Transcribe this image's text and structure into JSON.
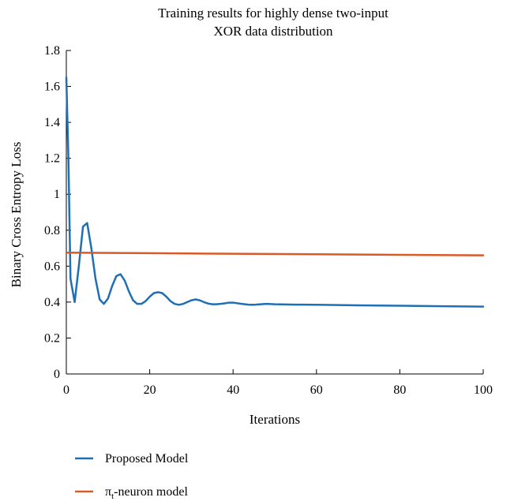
{
  "chart_data": {
    "type": "line",
    "title": [
      "Training results for highly dense two-input",
      "XOR data distribution"
    ],
    "xlabel": "Iterations",
    "ylabel": "Binary Cross Entropy Loss",
    "xlim": [
      0,
      100
    ],
    "ylim": [
      0,
      1.8
    ],
    "xticks": [
      0,
      20,
      40,
      60,
      80,
      100
    ],
    "yticks": [
      0,
      0.2,
      0.4,
      0.6,
      0.8,
      1,
      1.2,
      1.4,
      1.6,
      1.8
    ],
    "xtick_labels": [
      "0",
      "20",
      "40",
      "60",
      "80",
      "100"
    ],
    "ytick_labels": [
      "0",
      "0.2",
      "0.4",
      "0.6",
      "0.8",
      "1",
      "1.2",
      "1.4",
      "1.6",
      "1.8"
    ],
    "grid": false,
    "legend_position": "bottom",
    "series": [
      {
        "name": "Proposed Model",
        "color": "#1f6fb5",
        "x": [
          0,
          0.5,
          1,
          2,
          3,
          4,
          5,
          6,
          7,
          8,
          9,
          10,
          11,
          12,
          13,
          14,
          15,
          16,
          17,
          18,
          19,
          20,
          21,
          22,
          23,
          24,
          25,
          26,
          27,
          28,
          29,
          30,
          31,
          32,
          33,
          34,
          35,
          36,
          37,
          38,
          39,
          40,
          42,
          44,
          45,
          46,
          48,
          50,
          55,
          60,
          70,
          80,
          90,
          100
        ],
        "y": [
          1.65,
          1.2,
          0.53,
          0.4,
          0.6,
          0.82,
          0.84,
          0.7,
          0.53,
          0.415,
          0.39,
          0.42,
          0.49,
          0.545,
          0.555,
          0.52,
          0.46,
          0.41,
          0.39,
          0.39,
          0.405,
          0.43,
          0.45,
          0.455,
          0.45,
          0.43,
          0.405,
          0.39,
          0.385,
          0.39,
          0.4,
          0.41,
          0.415,
          0.41,
          0.4,
          0.392,
          0.388,
          0.388,
          0.39,
          0.393,
          0.397,
          0.397,
          0.39,
          0.385,
          0.385,
          0.387,
          0.39,
          0.388,
          0.386,
          0.385,
          0.382,
          0.38,
          0.377,
          0.375
        ]
      },
      {
        "name": "π_t-neuron model",
        "name_parts": [
          "π",
          "t",
          "-neuron model"
        ],
        "color": "#d85a2a",
        "x": [
          0,
          20,
          40,
          60,
          80,
          100
        ],
        "y": [
          0.675,
          0.672,
          0.669,
          0.666,
          0.663,
          0.66
        ]
      }
    ]
  }
}
